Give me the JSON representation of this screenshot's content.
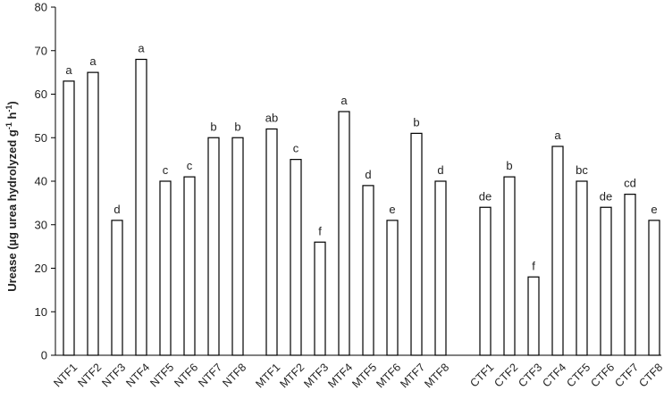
{
  "chart_data": {
    "type": "bar",
    "ylabel_parts": [
      "Urease (µg urea hydrolyzed g",
      "-1",
      " h",
      "-1",
      ")"
    ],
    "ylim": [
      0,
      80
    ],
    "yticks": [
      0,
      10,
      20,
      30,
      40,
      50,
      60,
      70,
      80
    ],
    "grid": false,
    "legend": "none",
    "groups": [
      {
        "categories": [
          "NTF1",
          "NTF2",
          "NTF3",
          "NTF4",
          "NTF5",
          "NTF6",
          "NTF7",
          "NTF8"
        ],
        "values": [
          63,
          65,
          31,
          68,
          40,
          41,
          50,
          50
        ],
        "labels": [
          "a",
          "a",
          "d",
          "a",
          "c",
          "c",
          "b",
          "b"
        ]
      },
      {
        "categories": [
          "MTF1",
          "MTF2",
          "MTF3",
          "MTF4",
          "MTF5",
          "MTF6",
          "MTF7",
          "MTF8"
        ],
        "values": [
          52,
          45,
          26,
          56,
          39,
          31,
          51,
          40
        ],
        "labels": [
          "ab",
          "c",
          "f",
          "a",
          "d",
          "e",
          "b",
          "d"
        ]
      },
      {
        "categories": [
          "CTF1",
          "CTF2",
          "CTF3",
          "CTF4",
          "CTF5",
          "CTF6",
          "CTF7",
          "CTF8"
        ],
        "values": [
          34,
          41,
          18,
          48,
          40,
          34,
          37,
          31
        ],
        "labels": [
          "de",
          "b",
          "f",
          "a",
          "bc",
          "de",
          "cd",
          "e"
        ]
      }
    ]
  }
}
